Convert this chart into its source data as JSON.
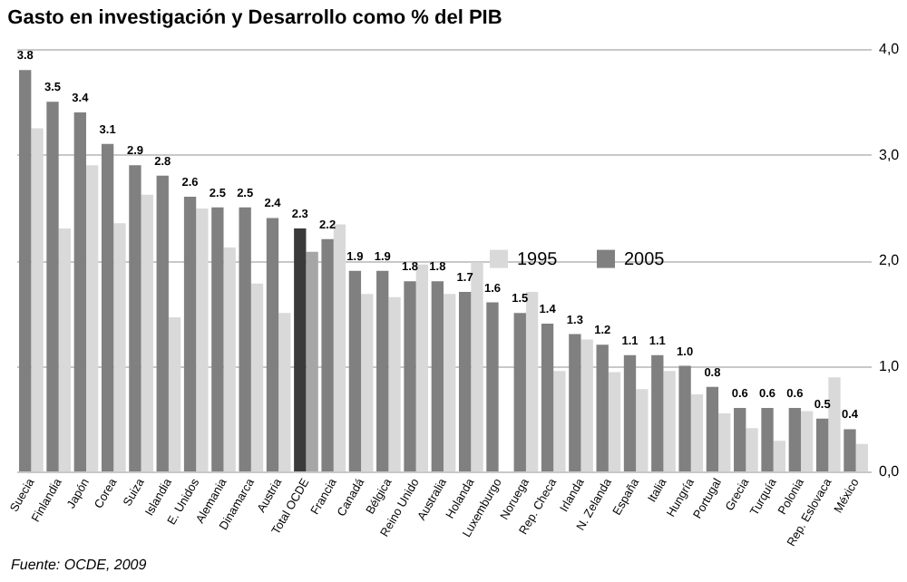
{
  "chart_data": {
    "type": "bar",
    "title": "Gasto en investigación y Desarrollo como % del PIB",
    "categories": [
      "Suecia",
      "Finlandia",
      "Japón",
      "Corea",
      "Suiza",
      "Islandia",
      "E. Unidos",
      "Alemania",
      "Dinamarca",
      "Austria",
      "Total OCDE",
      "Francia",
      "Canadá",
      "Bélgica",
      "Reino Unido",
      "Australia",
      "Holanda",
      "Luxemburgo",
      "Noruega",
      "Rep. Checa",
      "Irlanda",
      "N. Zelanda",
      "España",
      "Italia",
      "Hungría",
      "Portugal",
      "Grecia",
      "Turquía",
      "Polonia",
      "Rep. Eslovaca",
      "México"
    ],
    "series": [
      {
        "name": "1995",
        "color": "#d9d9d9",
        "colors": [
          "#d9d9d9",
          "#d9d9d9",
          "#d9d9d9",
          "#d9d9d9",
          "#d9d9d9",
          "#d9d9d9",
          "#d9d9d9",
          "#d9d9d9",
          "#d9d9d9",
          "#d9d9d9",
          "#a6a6a6",
          "#d9d9d9",
          "#d9d9d9",
          "#d9d9d9",
          "#d9d9d9",
          "#d9d9d9",
          "#d9d9d9",
          "#d9d9d9",
          "#d9d9d9",
          "#d9d9d9",
          "#d9d9d9",
          "#d9d9d9",
          "#d9d9d9",
          "#d9d9d9",
          "#d9d9d9",
          "#d9d9d9",
          "#d9d9d9",
          "#d9d9d9",
          "#d9d9d9",
          "#d9d9d9",
          "#d9d9d9"
        ],
        "values": [
          3.25,
          2.3,
          2.9,
          2.35,
          2.62,
          1.46,
          2.49,
          2.12,
          1.78,
          1.5,
          2.08,
          2.34,
          1.68,
          1.65,
          1.96,
          1.68,
          1.98,
          null,
          1.7,
          0.95,
          1.25,
          0.94,
          0.78,
          0.95,
          0.73,
          0.55,
          0.41,
          0.29,
          0.57,
          0.89,
          0.26
        ]
      },
      {
        "name": "2005",
        "color": "#808080",
        "colors": [
          "#808080",
          "#808080",
          "#808080",
          "#808080",
          "#808080",
          "#808080",
          "#808080",
          "#808080",
          "#808080",
          "#808080",
          "#3a3a3a",
          "#808080",
          "#808080",
          "#808080",
          "#808080",
          "#808080",
          "#808080",
          "#808080",
          "#808080",
          "#808080",
          "#808080",
          "#808080",
          "#808080",
          "#808080",
          "#808080",
          "#808080",
          "#808080",
          "#808080",
          "#808080",
          "#808080",
          "#808080"
        ],
        "values": [
          3.8,
          3.5,
          3.4,
          3.1,
          2.9,
          2.8,
          2.6,
          2.5,
          2.5,
          2.4,
          2.3,
          2.2,
          1.9,
          1.9,
          1.8,
          1.8,
          1.7,
          1.6,
          1.5,
          1.4,
          1.3,
          1.2,
          1.1,
          1.1,
          1.0,
          0.8,
          0.6,
          0.6,
          0.6,
          0.5,
          0.4
        ],
        "value_labels": [
          "3.8",
          "3.5",
          "3.4",
          "3.1",
          "2.9",
          "2.8",
          "2.6",
          "2.5",
          "2.5",
          "2.4",
          "2.3",
          "2.2",
          "1.9",
          "1.9",
          "1.8",
          "1.8",
          "1.7",
          "1.6",
          "1.5",
          "1.4",
          "1.3",
          "1.2",
          "1.1",
          "1.1",
          "1.0",
          "0.8",
          "0.6",
          "0.6",
          "0.6",
          "0.5",
          "0.4"
        ]
      }
    ],
    "ylim": [
      0,
      4
    ],
    "yticks": [
      {
        "value": 0,
        "label": "0,0"
      },
      {
        "value": 1,
        "label": "1,0"
      },
      {
        "value": 2,
        "label": "2,0"
      },
      {
        "value": 3,
        "label": "3,0"
      },
      {
        "value": 4,
        "label": "4,0"
      }
    ],
    "grid": true,
    "legend": "top right",
    "annotations": [
      "Fuente: OCDE, 2009"
    ]
  }
}
